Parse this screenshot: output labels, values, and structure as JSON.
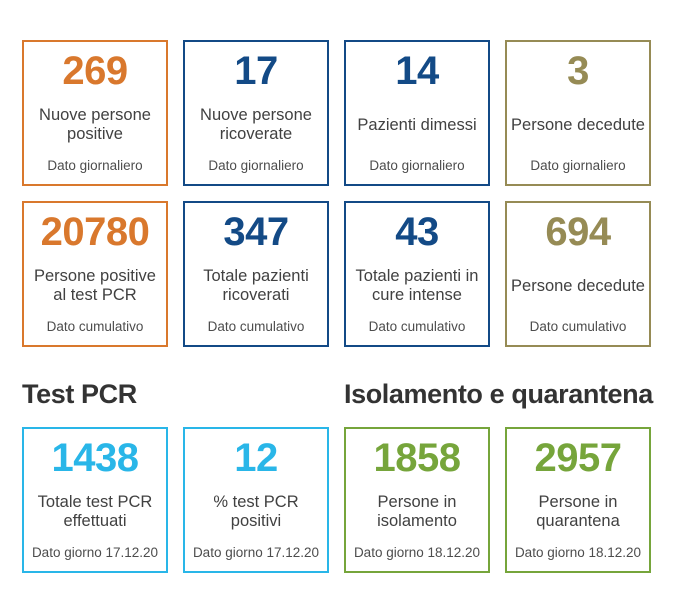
{
  "colors": {
    "orange": "#d9782d",
    "blue": "#134a86",
    "olive": "#968b55",
    "cyan": "#29b6e8",
    "green": "#76a53b",
    "label_text": "#414141",
    "sublabel_text": "#4d4d4d",
    "heading_text": "#333333"
  },
  "section_headers": [
    {
      "label": "Test PCR"
    },
    {
      "label": "Isolamento e quarantena"
    }
  ],
  "rows": [
    {
      "cards": [
        {
          "value": "269",
          "label": "Nuove persone positive",
          "sublabel": "Dato giornaliero",
          "color": "orange"
        },
        {
          "value": "17",
          "label": "Nuove persone ricoverate",
          "sublabel": "Dato giornaliero",
          "color": "blue"
        },
        {
          "value": "14",
          "label": "Pazienti dimessi",
          "sublabel": "Dato giornaliero",
          "color": "blue"
        },
        {
          "value": "3",
          "label": "Persone decedute",
          "sublabel": "Dato giornaliero",
          "color": "olive"
        }
      ]
    },
    {
      "cards": [
        {
          "value": "20780",
          "label": "Persone positive al test PCR",
          "sublabel": "Dato cumulativo",
          "color": "orange"
        },
        {
          "value": "347",
          "label": "Totale pazienti ricoverati",
          "sublabel": "Dato cumulativo",
          "color": "blue"
        },
        {
          "value": "43",
          "label": "Totale pazienti in cure intense",
          "sublabel": "Dato cumulativo",
          "color": "blue"
        },
        {
          "value": "694",
          "label": "Persone decedute",
          "sublabel": "Dato cumulativo",
          "color": "olive"
        }
      ]
    },
    {
      "cards": [
        {
          "value": "1438",
          "label": "Totale test PCR effettuati",
          "sublabel": "Dato giorno 17.12.20",
          "color": "cyan"
        },
        {
          "value": "12",
          "label": "% test PCR positivi",
          "sublabel": "Dato giorno 17.12.20",
          "color": "cyan"
        },
        {
          "value": "1858",
          "label": "Persone in isolamento",
          "sublabel": "Dato giorno 18.12.20",
          "color": "green"
        },
        {
          "value": "2957",
          "label": "Persone in quarantena",
          "sublabel": "Dato giorno 18.12.20",
          "color": "green"
        }
      ]
    }
  ]
}
